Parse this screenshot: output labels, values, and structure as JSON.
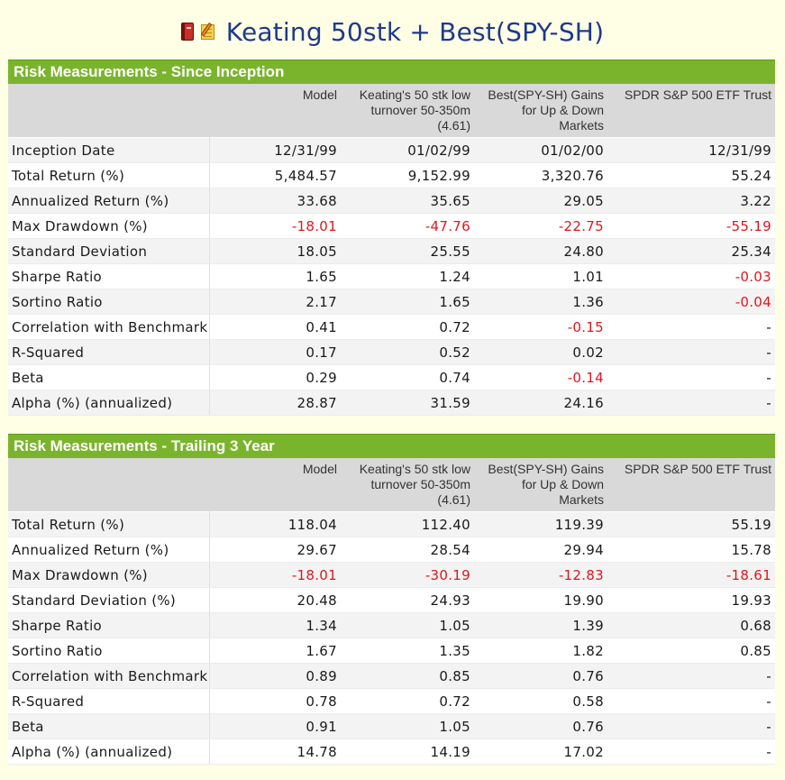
{
  "header": {
    "title": "Keating 50stk + Best(SPY-SH)",
    "icons": [
      "book-icon",
      "notepad-icon"
    ]
  },
  "columns": {
    "model": "Model",
    "keating": "Keating's 50 stk low turnover 50-350m (4.61)",
    "best": "Best(SPY-SH) Gains for Up & Down Markets",
    "spdr": "SPDR S&P 500 ETF Trust"
  },
  "colors": {
    "section_bar": "#7ab42c",
    "negative": "#e0161c",
    "title": "#1e3a8a"
  },
  "sections": [
    {
      "title": "Risk Measurements - Since Inception",
      "rows": [
        {
          "label": "Inception Date",
          "values": [
            "12/31/99",
            "01/02/99",
            "01/02/00",
            "12/31/99"
          ]
        },
        {
          "label": "Total Return (%)",
          "values": [
            "5,484.57",
            "9,152.99",
            "3,320.76",
            "55.24"
          ]
        },
        {
          "label": "Annualized Return (%)",
          "values": [
            "33.68",
            "35.65",
            "29.05",
            "3.22"
          ]
        },
        {
          "label": "Max Drawdown (%)",
          "values": [
            "-18.01",
            "-47.76",
            "-22.75",
            "-55.19"
          ]
        },
        {
          "label": "Standard Deviation",
          "values": [
            "18.05",
            "25.55",
            "24.80",
            "25.34"
          ]
        },
        {
          "label": "Sharpe Ratio",
          "values": [
            "1.65",
            "1.24",
            "1.01",
            "-0.03"
          ]
        },
        {
          "label": "Sortino Ratio",
          "values": [
            "2.17",
            "1.65",
            "1.36",
            "-0.04"
          ]
        },
        {
          "label": "Correlation with Benchmark",
          "values": [
            "0.41",
            "0.72",
            "-0.15",
            "-"
          ]
        },
        {
          "label": "R-Squared",
          "values": [
            "0.17",
            "0.52",
            "0.02",
            "-"
          ]
        },
        {
          "label": "Beta",
          "values": [
            "0.29",
            "0.74",
            "-0.14",
            "-"
          ]
        },
        {
          "label": "Alpha (%) (annualized)",
          "values": [
            "28.87",
            "31.59",
            "24.16",
            "-"
          ]
        }
      ]
    },
    {
      "title": "Risk Measurements - Trailing 3 Year",
      "rows": [
        {
          "label": "Total Return (%)",
          "values": [
            "118.04",
            "112.40",
            "119.39",
            "55.19"
          ]
        },
        {
          "label": "Annualized Return (%)",
          "values": [
            "29.67",
            "28.54",
            "29.94",
            "15.78"
          ]
        },
        {
          "label": "Max Drawdown (%)",
          "values": [
            "-18.01",
            "-30.19",
            "-12.83",
            "-18.61"
          ]
        },
        {
          "label": "Standard Deviation (%)",
          "values": [
            "20.48",
            "24.93",
            "19.90",
            "19.93"
          ]
        },
        {
          "label": "Sharpe Ratio",
          "values": [
            "1.34",
            "1.05",
            "1.39",
            "0.68"
          ]
        },
        {
          "label": "Sortino Ratio",
          "values": [
            "1.67",
            "1.35",
            "1.82",
            "0.85"
          ]
        },
        {
          "label": "Correlation with Benchmark",
          "values": [
            "0.89",
            "0.85",
            "0.76",
            "-"
          ]
        },
        {
          "label": "R-Squared",
          "values": [
            "0.78",
            "0.72",
            "0.58",
            "-"
          ]
        },
        {
          "label": "Beta",
          "values": [
            "0.91",
            "1.05",
            "0.76",
            "-"
          ]
        },
        {
          "label": "Alpha (%) (annualized)",
          "values": [
            "14.78",
            "14.19",
            "17.02",
            "-"
          ]
        }
      ]
    }
  ]
}
